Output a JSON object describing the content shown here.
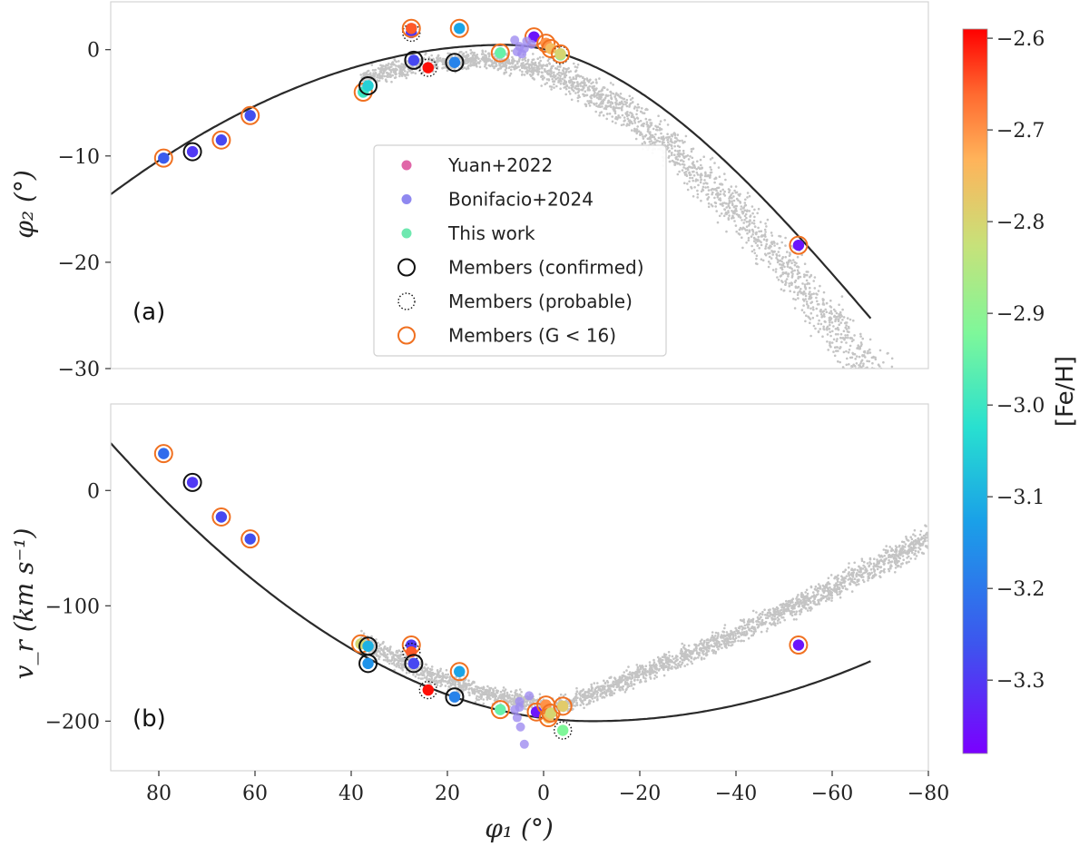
{
  "chart_data": [
    {
      "type": "scatter",
      "panel_label": "(a)",
      "ylabel": "φ₂ (°)",
      "xlabel": "",
      "xlim": [
        90,
        -80
      ],
      "ylim": [
        -30,
        4.5
      ],
      "yticks": [
        0,
        -10,
        -20,
        -30
      ],
      "ytick_labels": [
        "0",
        "−10",
        "−20",
        "−30"
      ],
      "legend": {
        "position": "center",
        "entries": [
          {
            "label": "Yuan+2022",
            "marker": "dot",
            "color": "#e066a8"
          },
          {
            "label": "Bonifacio+2024",
            "marker": "dot",
            "color": "#8f88f0"
          },
          {
            "label": "This work",
            "marker": "dot",
            "color": "#6fe8b0"
          },
          {
            "label": "Members (confirmed)",
            "marker": "ring-solid",
            "color": "#111111"
          },
          {
            "label": "Members (probable)",
            "marker": "ring-dotted",
            "color": "#111111"
          },
          {
            "label": "Members (G < 16)",
            "marker": "ring-solid",
            "color": "#f07020"
          }
        ]
      },
      "model_track": {
        "color": "#2a2a2a",
        "phi1_range": [
          90,
          -68
        ]
      },
      "points": [
        {
          "phi1": 79,
          "value": -10.2,
          "feh": -3.25,
          "ring": "g16"
        },
        {
          "phi1": 73,
          "value": -9.6,
          "feh": -3.3,
          "ring": "confirmed"
        },
        {
          "phi1": 67,
          "value": -8.5,
          "feh": -3.28,
          "ring": "g16"
        },
        {
          "phi1": 61,
          "value": -6.2,
          "feh": -3.27,
          "ring": "g16"
        },
        {
          "phi1": 37.5,
          "value": -4.0,
          "feh": -3.0,
          "ring": "g16"
        },
        {
          "phi1": 36.5,
          "value": -3.4,
          "feh": -3.05,
          "ring": "confirmed"
        },
        {
          "phi1": 27.5,
          "value": 1.6,
          "feh": -3.3,
          "ring": "probable"
        },
        {
          "phi1": 27.5,
          "value": 2.0,
          "feh": -2.65,
          "ring": "g16"
        },
        {
          "phi1": 27,
          "value": -1.0,
          "feh": -3.28,
          "ring": "confirmed"
        },
        {
          "phi1": 24,
          "value": -1.7,
          "feh": -2.6,
          "ring": "probable"
        },
        {
          "phi1": 18.5,
          "value": -1.2,
          "feh": -3.18,
          "ring": "confirmed"
        },
        {
          "phi1": 17.5,
          "value": 2.0,
          "feh": -3.12,
          "ring": "g16"
        },
        {
          "phi1": 9,
          "value": -0.3,
          "feh": -2.95,
          "ring": "g16"
        },
        {
          "phi1": 2,
          "value": 1.2,
          "feh": -3.35,
          "ring": "g16"
        },
        {
          "phi1": -0.5,
          "value": 0.6,
          "feh": -2.7,
          "ring": "g16"
        },
        {
          "phi1": -1.5,
          "value": 0.1,
          "feh": -2.75,
          "ring": "g16"
        },
        {
          "phi1": -3.5,
          "value": -0.5,
          "feh": -2.9,
          "ring": "probable"
        },
        {
          "phi1": -3.5,
          "value": -0.4,
          "feh": -2.8,
          "ring": "g16"
        },
        {
          "phi1": -53,
          "value": -18.4,
          "feh": -3.35,
          "ring": "g16"
        }
      ]
    },
    {
      "type": "scatter",
      "panel_label": "(b)",
      "ylabel": "v_r (km s⁻¹)",
      "xlabel": "φ₁ (°)",
      "xlim": [
        90,
        -80
      ],
      "ylim": [
        -243,
        75
      ],
      "xticks": [
        80,
        60,
        40,
        20,
        0,
        -20,
        -40,
        -60,
        -80
      ],
      "xtick_labels": [
        "80",
        "60",
        "40",
        "20",
        "0",
        "−20",
        "−40",
        "−60",
        "−80"
      ],
      "yticks": [
        0,
        -100,
        -200
      ],
      "ytick_labels": [
        "0",
        "−100",
        "−200"
      ],
      "model_track": {
        "color": "#2a2a2a",
        "phi1_range": [
          90,
          -68
        ]
      },
      "points": [
        {
          "phi1": 79,
          "value": 32,
          "feh": -3.22,
          "ring": "g16"
        },
        {
          "phi1": 73,
          "value": 7,
          "feh": -3.3,
          "ring": "confirmed"
        },
        {
          "phi1": 67,
          "value": -23,
          "feh": -3.28,
          "ring": "g16"
        },
        {
          "phi1": 61,
          "value": -42,
          "feh": -3.27,
          "ring": "g16"
        },
        {
          "phi1": 38,
          "value": -133,
          "feh": -2.8,
          "ring": "g16"
        },
        {
          "phi1": 36.5,
          "value": -135,
          "feh": -3.1,
          "ring": "confirmed"
        },
        {
          "phi1": 36.5,
          "value": -150,
          "feh": -3.15,
          "ring": "confirmed"
        },
        {
          "phi1": 27.5,
          "value": -134,
          "feh": -3.3,
          "ring": "g16"
        },
        {
          "phi1": 27.5,
          "value": -140,
          "feh": -2.65,
          "ring": "probable"
        },
        {
          "phi1": 27,
          "value": -150,
          "feh": -3.28,
          "ring": "confirmed"
        },
        {
          "phi1": 24,
          "value": -173,
          "feh": -2.6,
          "ring": "probable"
        },
        {
          "phi1": 18.5,
          "value": -179,
          "feh": -3.18,
          "ring": "confirmed"
        },
        {
          "phi1": 17.5,
          "value": -157,
          "feh": -3.12,
          "ring": "g16"
        },
        {
          "phi1": 9,
          "value": -190,
          "feh": -2.95,
          "ring": "g16"
        },
        {
          "phi1": 1.5,
          "value": -192,
          "feh": -3.35,
          "ring": "g16"
        },
        {
          "phi1": -0.5,
          "value": -186,
          "feh": -2.7,
          "ring": "g16"
        },
        {
          "phi1": -1,
          "value": -197,
          "feh": -2.75,
          "ring": "g16"
        },
        {
          "phi1": -1.5,
          "value": -193,
          "feh": -2.8,
          "ring": "g16"
        },
        {
          "phi1": -4,
          "value": -187,
          "feh": -2.78,
          "ring": "g16"
        },
        {
          "phi1": -4,
          "value": -208,
          "feh": -2.92,
          "ring": "probable"
        },
        {
          "phi1": -53,
          "value": -134,
          "feh": -3.35,
          "ring": "g16"
        }
      ]
    }
  ],
  "colorbar": {
    "label": "[Fe/H]",
    "range": [
      -3.38,
      -2.59
    ],
    "ticks": [
      -2.6,
      -2.7,
      -2.8,
      -2.9,
      -3.0,
      -3.1,
      -3.2,
      -3.3
    ],
    "tick_labels": [
      "−2.6",
      "−2.7",
      "−2.8",
      "−2.9",
      "−3.0",
      "−3.1",
      "−3.2",
      "−3.3"
    ]
  }
}
